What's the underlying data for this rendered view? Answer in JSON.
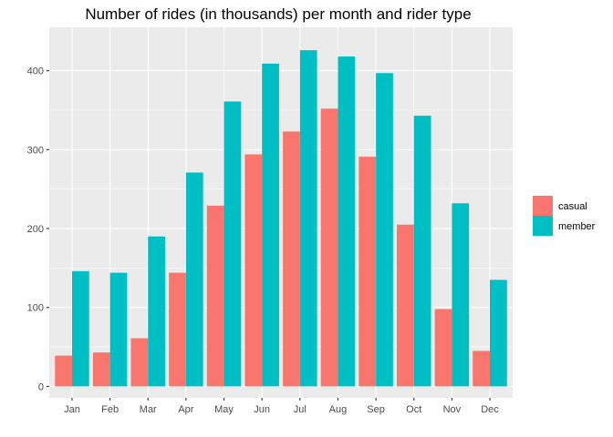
{
  "chart_data": {
    "type": "bar",
    "title": "Number of rides (in thousands) per month and rider type",
    "xlabel": "",
    "ylabel": "",
    "categories": [
      "Jan",
      "Feb",
      "Mar",
      "Apr",
      "May",
      "Jun",
      "Jul",
      "Aug",
      "Sep",
      "Oct",
      "Nov",
      "Dec"
    ],
    "series": [
      {
        "name": "casual",
        "color": "#F8766D",
        "values": [
          39,
          43,
          61,
          144,
          229,
          294,
          323,
          352,
          291,
          205,
          98,
          45
        ]
      },
      {
        "name": "member",
        "color": "#00BFC4",
        "values": [
          146,
          144,
          190,
          271,
          361,
          409,
          426,
          418,
          397,
          343,
          232,
          135
        ]
      }
    ],
    "ylim": [
      -14.5,
      455
    ],
    "yticks": [
      0,
      100,
      200,
      300,
      400
    ],
    "grid": true,
    "legend_position": "right",
    "panel_background": "#EBEBEB",
    "grid_color": "#FFFFFF"
  }
}
